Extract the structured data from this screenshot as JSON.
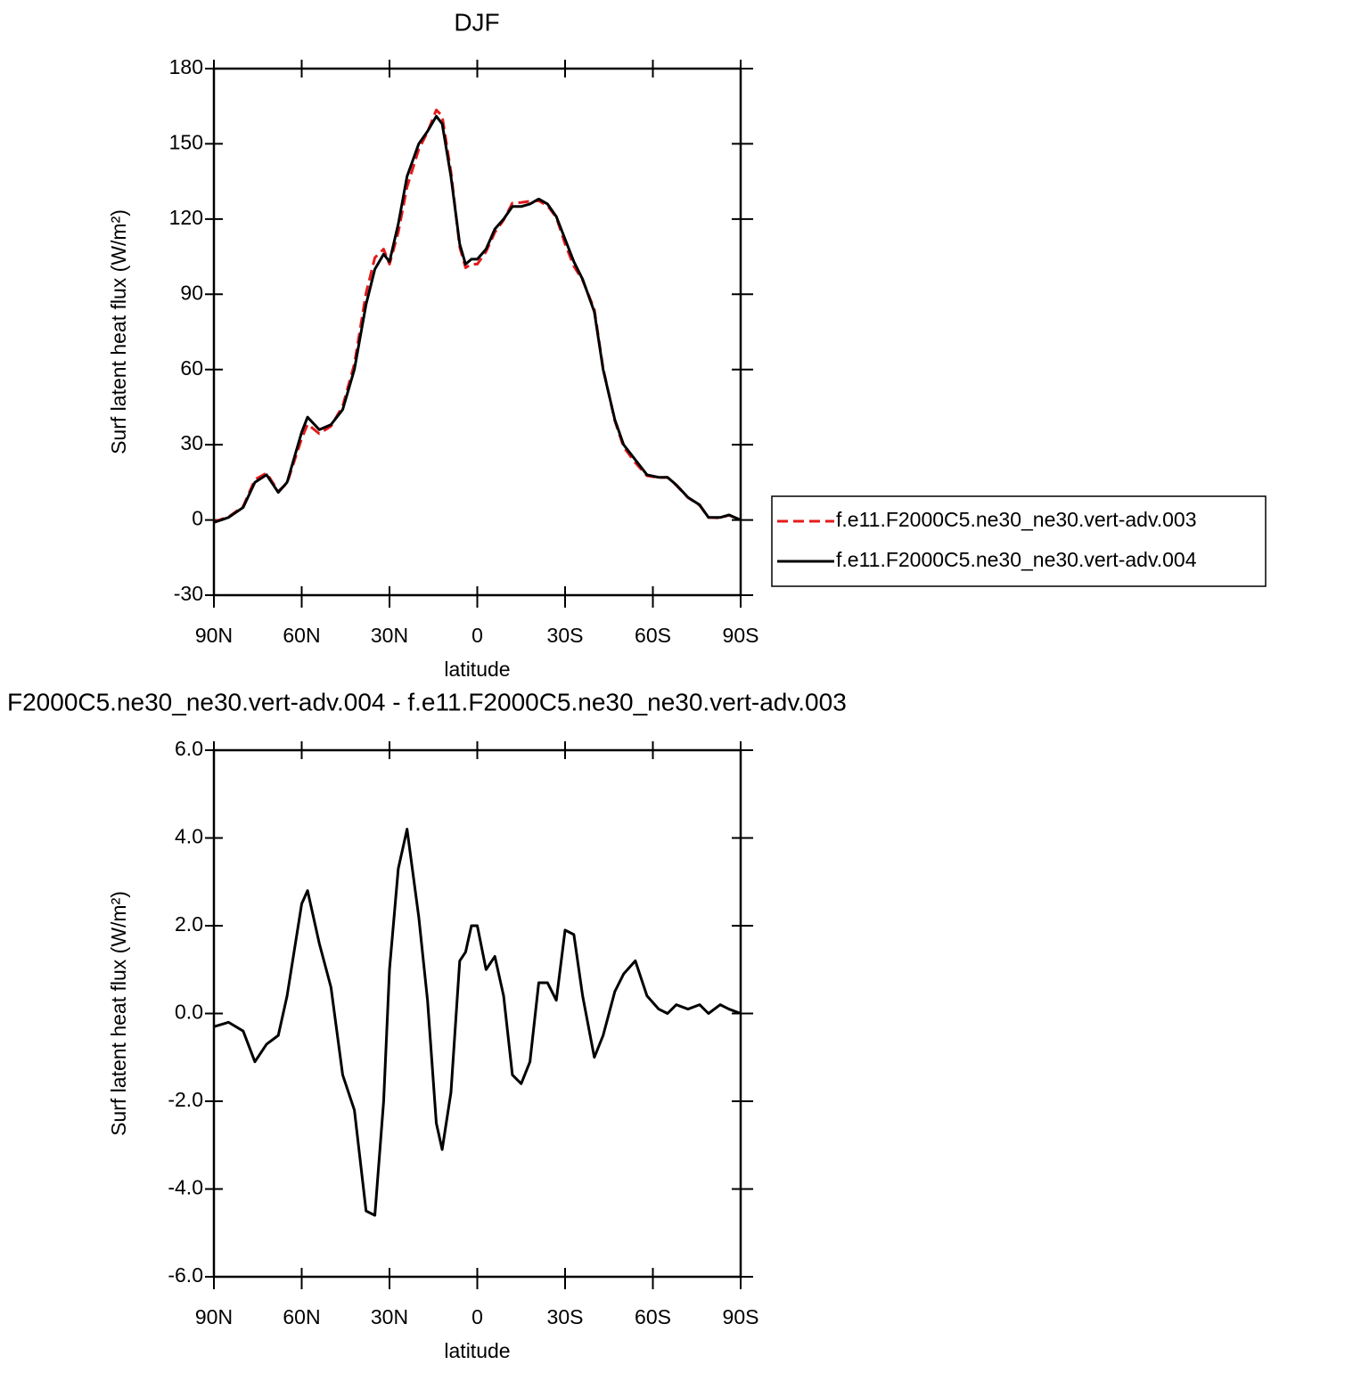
{
  "chart_data": [
    {
      "type": "line",
      "title": "DJF",
      "xlabel": "latitude",
      "ylabel": "Surf latent heat flux (W/m²)",
      "x": [
        90,
        85,
        80,
        76,
        72,
        68,
        65,
        60,
        58,
        54,
        50,
        46,
        42,
        38,
        35,
        32,
        30,
        27,
        24,
        20,
        17,
        14,
        12,
        9,
        6,
        4,
        2,
        0,
        -3,
        -6,
        -9,
        -12,
        -15,
        -18,
        -21,
        -24,
        -27,
        -30,
        -33,
        -36,
        -40,
        -43,
        -47,
        -50,
        -54,
        -58,
        -62,
        -65,
        -68,
        -72,
        -76,
        -79,
        -83,
        -86,
        -90
      ],
      "series": [
        {
          "name": "f.e11.F2000C5.ne30_ne30.vert-adv.003",
          "color": "#e41a1c",
          "linestyle": "dashed",
          "values": [
            -0.7,
            1.2,
            5.4,
            16.1,
            18.7,
            11.5,
            14.6,
            32.5,
            38.2,
            34.4,
            37.4,
            45.4,
            62.2,
            90.5,
            104.6,
            108,
            102,
            114.7,
            132.8,
            147.8,
            154.7,
            163.5,
            161.1,
            138.8,
            108.8,
            100.6,
            102,
            102,
            107,
            114.7,
            119.6,
            126.4,
            126.6,
            127.1,
            127.3,
            125.3,
            120.7,
            110.1,
            101.2,
            95.6,
            84,
            60.5,
            39.5,
            29.1,
            22.8,
            17.6,
            16.9,
            17,
            13.8,
            8.9,
            5.8,
            1,
            0.8,
            1.9,
            0
          ]
        },
        {
          "name": "f.e11.F2000C5.ne30_ne30.vert-adv.004",
          "color": "#000000",
          "linestyle": "solid",
          "values": [
            -1,
            1,
            5,
            15,
            18,
            11,
            15,
            35,
            41,
            36,
            38,
            44,
            60,
            86,
            100,
            106,
            103,
            118,
            137,
            150,
            155,
            161,
            158,
            137,
            110,
            102,
            104,
            104,
            108,
            116,
            120,
            125,
            125,
            126,
            128,
            126,
            121,
            112,
            103,
            96,
            83,
            60,
            40,
            30,
            24,
            18,
            17,
            17,
            14,
            9,
            6,
            1,
            1,
            2,
            0
          ]
        }
      ],
      "xlim": [
        90,
        -90
      ],
      "xticks": [
        {
          "value": 90,
          "label": "90N"
        },
        {
          "value": 60,
          "label": "60N"
        },
        {
          "value": 30,
          "label": "30N"
        },
        0,
        {
          "value": -30,
          "label": "30S"
        },
        {
          "value": -60,
          "label": "60S"
        },
        {
          "value": -90,
          "label": "90S"
        }
      ],
      "ylim": [
        -30,
        180
      ],
      "yticks": [
        -30,
        0,
        30,
        60,
        90,
        120,
        150,
        180
      ],
      "legend": "right"
    },
    {
      "type": "line",
      "title": "F2000C5.ne30_ne30.vert-adv.004 - f.e11.F2000C5.ne30_ne30.vert-adv.003",
      "xlabel": "latitude",
      "ylabel": "Surf latent heat flux (W/m²)",
      "x": [
        90,
        85,
        80,
        76,
        72,
        68,
        65,
        60,
        58,
        54,
        50,
        46,
        42,
        38,
        35,
        32,
        30,
        27,
        24,
        20,
        17,
        14,
        12,
        9,
        6,
        4,
        2,
        0,
        -3,
        -6,
        -9,
        -12,
        -15,
        -18,
        -21,
        -24,
        -27,
        -30,
        -33,
        -36,
        -40,
        -43,
        -47,
        -50,
        -54,
        -58,
        -62,
        -65,
        -68,
        -72,
        -76,
        -79,
        -83,
        -86,
        -90
      ],
      "series": [
        {
          "color": "#000000",
          "linestyle": "solid",
          "values": [
            -0.3,
            -0.2,
            -0.4,
            -1.1,
            -0.7,
            -0.5,
            0.4,
            2.5,
            2.8,
            1.6,
            0.6,
            -1.4,
            -2.2,
            -4.5,
            -4.6,
            -2.0,
            1.0,
            3.3,
            4.2,
            2.2,
            0.3,
            -2.5,
            -3.1,
            -1.8,
            1.2,
            1.4,
            2.0,
            2.0,
            1.0,
            1.3,
            0.4,
            -1.4,
            -1.6,
            -1.1,
            0.7,
            0.7,
            0.3,
            1.9,
            1.8,
            0.4,
            -1.0,
            -0.5,
            0.5,
            0.9,
            1.2,
            0.4,
            0.1,
            0.0,
            0.2,
            0.1,
            0.2,
            0.0,
            0.2,
            0.1,
            0.0
          ]
        }
      ],
      "xlim": [
        90,
        -90
      ],
      "xticks": [
        {
          "value": 90,
          "label": "90N"
        },
        {
          "value": 60,
          "label": "60N"
        },
        {
          "value": 30,
          "label": "30N"
        },
        0,
        {
          "value": -30,
          "label": "30S"
        },
        {
          "value": -60,
          "label": "60S"
        },
        {
          "value": -90,
          "label": "90S"
        }
      ],
      "ylim": [
        -6,
        6
      ],
      "yticks": [
        {
          "value": -6,
          "label": "-6.0"
        },
        {
          "value": -4,
          "label": "-4.0"
        },
        {
          "value": -2,
          "label": "-2.0"
        },
        {
          "value": 0,
          "label": "0.0"
        },
        {
          "value": 2,
          "label": "2.0"
        },
        {
          "value": 4,
          "label": "4.0"
        },
        {
          "value": 6,
          "label": "6.0"
        }
      ]
    }
  ]
}
